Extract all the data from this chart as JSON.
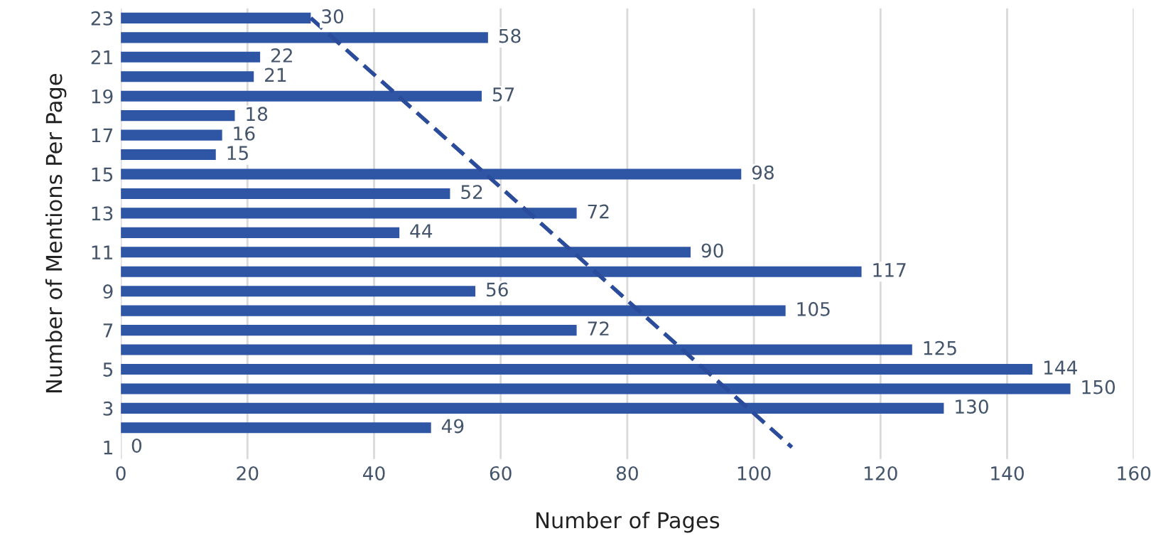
{
  "chart_data": {
    "type": "bar",
    "orientation": "horizontal",
    "xlabel": "Number of Pages",
    "ylabel": "Number of Mentions Per Page",
    "categories": [
      "23",
      null,
      "21",
      null,
      "19",
      null,
      "17",
      null,
      "15",
      null,
      "13",
      null,
      "11",
      null,
      "9",
      null,
      "7",
      null,
      "5",
      null,
      "3",
      null,
      "1"
    ],
    "series": [
      {
        "color": "#2f55a5",
        "values": [
          30,
          58,
          22,
          21,
          57,
          18,
          16,
          15,
          98,
          52,
          72,
          44,
          90,
          117,
          56,
          105,
          72,
          125,
          144,
          150,
          130,
          49,
          0
        ],
        "value_labels": [
          "30",
          "58",
          "22",
          "21",
          "57",
          "18",
          "16",
          "15",
          "98",
          "52",
          "72",
          "44",
          "90",
          "117",
          "56",
          "105",
          "72",
          "125",
          "144",
          "150",
          "130",
          "49",
          "0"
        ]
      },
      {
        "type": "line",
        "line_style": "dashed",
        "color": "#2b4b9b",
        "x": [
          "23",
          "1"
        ],
        "values": [
          30,
          106
        ]
      }
    ],
    "xlim": [
      0,
      160
    ],
    "xticks": [
      0,
      20,
      40,
      60,
      80,
      100,
      120,
      140,
      160
    ],
    "grid": "x"
  }
}
